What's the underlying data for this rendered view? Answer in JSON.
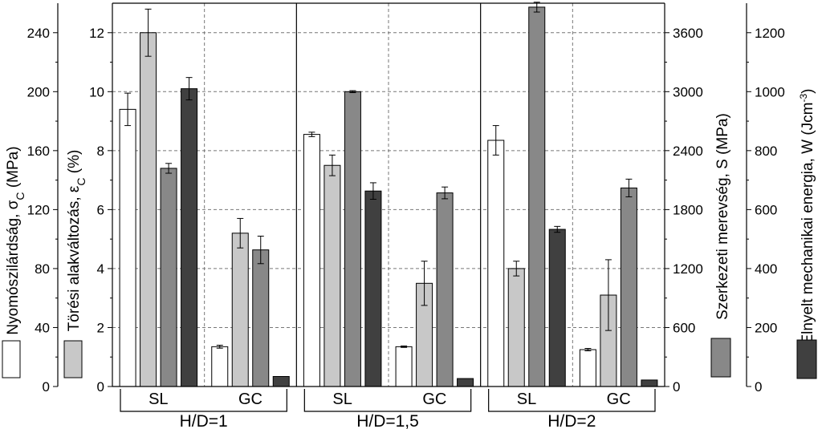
{
  "chart_data": {
    "type": "bar",
    "groups": [
      {
        "label": "H/D=1",
        "categories": [
          "SL",
          "GC"
        ]
      },
      {
        "label": "H/D=1,5",
        "categories": [
          "SL",
          "GC"
        ]
      },
      {
        "label": "H/D=2",
        "categories": [
          "SL",
          "GC"
        ]
      }
    ],
    "axes": {
      "left_outer": {
        "label_main": "Nyomószilárdság, σ",
        "label_sub": "C",
        "label_tail": " (MPa)",
        "ylim": [
          0,
          260
        ],
        "ticks": [
          "0",
          "40",
          "80",
          "120",
          "160",
          "200",
          "240"
        ]
      },
      "left_inner": {
        "label_main": "Törési alakváltozás, ε",
        "label_sub": "C",
        "label_tail": " (%)",
        "ylim": [
          0,
          13
        ],
        "ticks": [
          "0",
          "2",
          "4",
          "6",
          "8",
          "10",
          "12"
        ]
      },
      "right_inner": {
        "label_main": "Szerkezeti merevség, S (MPa)",
        "ylim": [
          0,
          3900
        ],
        "ticks": [
          "0",
          "600",
          "1200",
          "1800",
          "2400",
          "3000",
          "3600"
        ]
      },
      "right_outer": {
        "label_main": "Elnyelt mechanikai energia, W (Jcm",
        "label_sup": "-3",
        "label_tail": ")",
        "ylim": [
          0,
          1300
        ],
        "ticks": [
          "0",
          "200",
          "400",
          "600",
          "800",
          "1000",
          "1200"
        ]
      }
    },
    "series": [
      {
        "name": "σC",
        "axis": "left_outer",
        "color": "#ffffff",
        "values": [
          188,
          27,
          171,
          27,
          167,
          25
        ],
        "errors": [
          11,
          1,
          1.5,
          0.5,
          10,
          0.8
        ]
      },
      {
        "name": "εC",
        "axis": "left_inner",
        "color": "#c8c8c8",
        "values": [
          12.0,
          5.2,
          7.5,
          3.5,
          4.0,
          3.1
        ],
        "errors": [
          0.8,
          0.5,
          0.35,
          0.75,
          0.25,
          1.2
        ]
      },
      {
        "name": "S",
        "axis": "right_inner",
        "color": "#888888",
        "values": [
          2220,
          1390,
          3000,
          1970,
          3860,
          2020
        ],
        "errors": [
          50,
          140,
          10,
          60,
          50,
          90
        ]
      },
      {
        "name": "W",
        "axis": "right_outer",
        "color": "#404040",
        "values": [
          1010,
          34,
          663,
          27,
          533,
          22
        ],
        "errors": [
          38,
          0,
          28,
          0,
          10,
          0
        ]
      }
    ],
    "grid": true,
    "legend": [
      "left-bottom (σC, εC swatches)",
      "right-bottom (S, W swatches)"
    ]
  }
}
